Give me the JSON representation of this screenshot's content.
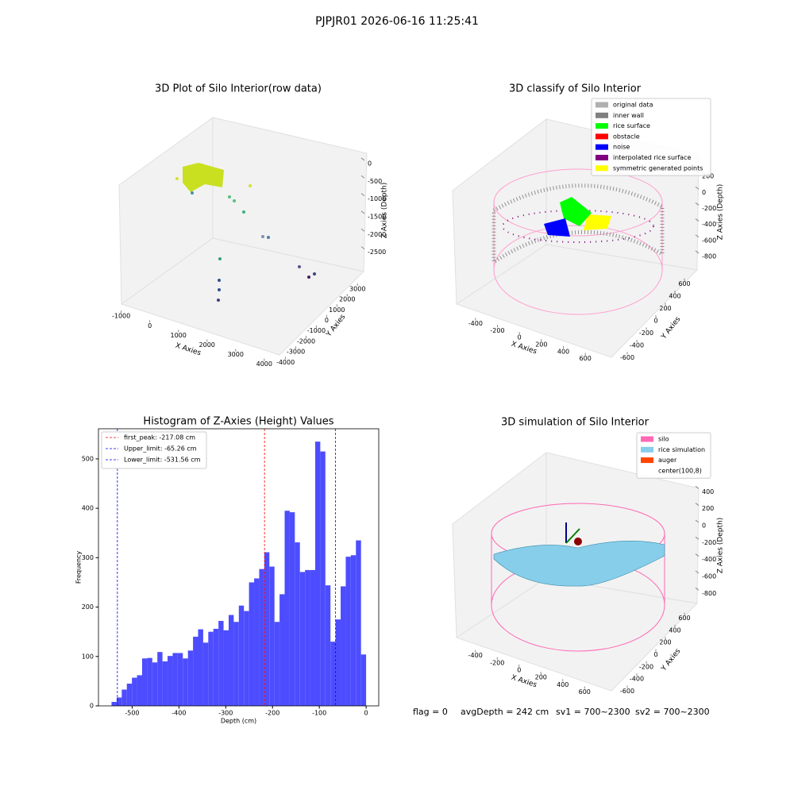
{
  "title": "PJPJR01 2026-06-16 11:25:41",
  "chart_data": [
    {
      "type": "scatter3d",
      "title": "3D Plot of Silo Interior(row data)",
      "xlabel": "X Axies",
      "ylabel": "Y Axies",
      "zlabel": "Z Axies (Depth)",
      "xlim": [
        -1100,
        4200
      ],
      "ylim": [
        -4200,
        3600
      ],
      "zlim": [
        -2800,
        200
      ],
      "xticks": [
        -1000,
        0,
        1000,
        2000,
        3000,
        4000
      ],
      "yticks": [
        -4000,
        -3000,
        -2000,
        -1000,
        0,
        1000,
        2000,
        3000
      ],
      "zticks": [
        0,
        -500,
        -1000,
        -1500,
        -2000,
        -2500
      ]
    },
    {
      "type": "scatter3d",
      "title": "3D classify of Silo Interior",
      "xlabel": "X Axies",
      "ylabel": "Y Axies",
      "zlabel": "Z Axies (Depth)",
      "xlim": [
        -500,
        700
      ],
      "ylim": [
        -700,
        700
      ],
      "zlim": [
        -900,
        300
      ],
      "xticks": [
        -400,
        -200,
        0,
        200,
        400,
        600
      ],
      "yticks": [
        -600,
        -400,
        -200,
        0,
        200,
        400,
        600
      ],
      "zticks": [
        200,
        0,
        -200,
        -400,
        -600,
        -800
      ],
      "legend": [
        {
          "name": "original data",
          "color": "#b0b0b0"
        },
        {
          "name": "inner wall",
          "color": "#808080"
        },
        {
          "name": "rice surface",
          "color": "#00ff00"
        },
        {
          "name": "obstacle",
          "color": "#ff0000"
        },
        {
          "name": "noise",
          "color": "#0000ff"
        },
        {
          "name": "interpolated rice surface",
          "color": "#800080"
        },
        {
          "name": "symmetric generated points",
          "color": "#ffff00"
        }
      ]
    },
    {
      "type": "histogram",
      "title": "Histogram of Z-Axies (Height) Values",
      "xlabel": "Depth (cm)",
      "ylabel": "Frequency",
      "color": "#4d4dff",
      "bins": [
        -544,
        -533.12,
        -522.24,
        -511.36,
        -500.48,
        -489.6,
        -478.72,
        -467.84,
        -456.96,
        -446.08,
        -435.2,
        -424.32,
        -413.44,
        -402.56,
        -391.68,
        -380.8,
        -369.92,
        -359.04,
        -348.16,
        -337.28,
        -326.4,
        -315.52,
        -304.64,
        -293.76,
        -282.88,
        -272,
        -261.12,
        -250.24,
        -239.36,
        -228.48,
        -217.6,
        -206.72,
        -195.84,
        -184.96,
        -174.08,
        -163.2,
        -152.32,
        -141.44,
        -130.56,
        -119.68,
        -108.8,
        -97.92,
        -87.04,
        -76.16,
        -65.28,
        -54.4,
        -43.52,
        -32.64,
        -21.76,
        -10.88,
        0
      ],
      "counts": [
        8,
        17,
        33,
        45,
        57,
        62,
        96,
        97,
        88,
        109,
        90,
        101,
        107,
        107,
        96,
        112,
        140,
        155,
        128,
        150,
        156,
        172,
        153,
        184,
        170,
        203,
        192,
        250,
        258,
        277,
        311,
        282,
        170,
        226,
        395,
        392,
        331,
        271,
        275,
        275,
        535,
        515,
        244,
        130,
        175,
        242,
        302,
        305,
        335,
        104
      ],
      "xlim": [
        -572,
        27
      ],
      "ylim": [
        0,
        561
      ],
      "xticks": [
        -500,
        -400,
        -300,
        -200,
        -100,
        0
      ],
      "yticks": [
        0,
        100,
        200,
        300,
        400,
        500
      ],
      "lines": [
        {
          "label": "first_peak: -217.08 cm",
          "value": -217.08,
          "color": "#ff0000"
        },
        {
          "label": "Upper_limit: -65.26 cm",
          "value": -65.26,
          "color": "#0000ff"
        },
        {
          "label": "Lower_limit: -531.56 cm",
          "value": -531.56,
          "color": "#0000ff"
        }
      ],
      "legend_position": "upper left"
    },
    {
      "type": "surface3d",
      "title": "3D simulation of Silo Interior",
      "xlabel": "X Axies",
      "ylabel": "Y Axies",
      "zlabel": "Z Axies (Depth)",
      "xlim": [
        -500,
        700
      ],
      "ylim": [
        -700,
        700
      ],
      "zlim": [
        -900,
        450
      ],
      "xticks": [
        -400,
        -200,
        0,
        200,
        400,
        600
      ],
      "yticks": [
        -600,
        -400,
        -200,
        0,
        200,
        400,
        600
      ],
      "zticks": [
        400,
        200,
        0,
        -200,
        -400,
        -600,
        -800
      ],
      "legend": [
        {
          "name": "silo",
          "color": "#ff69b4"
        },
        {
          "name": "rice simulation",
          "color": "#87ceeb"
        },
        {
          "name": "auger",
          "color": "#ff4500"
        },
        {
          "name": "center(100,8)",
          "color": "#ffffff"
        }
      ]
    }
  ],
  "footer": [
    "flag = 0",
    "avgDepth = 242 cm",
    "sv1 = 700~2300",
    "sv2 = 700~2300"
  ]
}
